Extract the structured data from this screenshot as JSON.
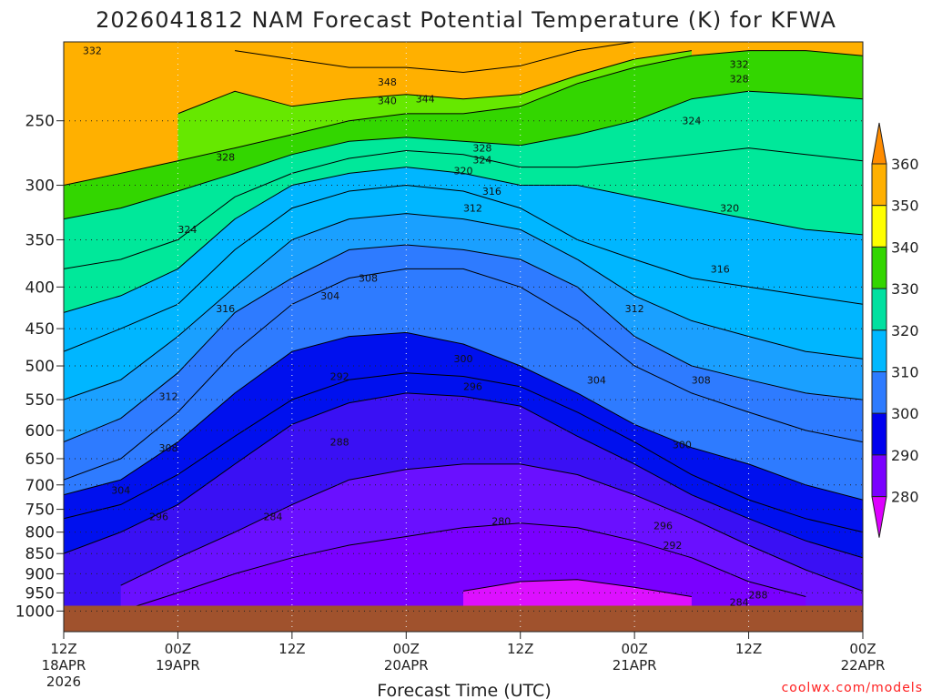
{
  "chart_data": {
    "type": "heatmap",
    "title": "2026041812 NAM Forecast Potential Temperature (K) for KFWA",
    "xlabel": "Forecast Time (UTC)",
    "ylabel": "",
    "y_scale": "log-pressure (inverted)",
    "ylim": [
      1000,
      200
    ],
    "y_ticks": [
      "250",
      "300",
      "350",
      "400",
      "450",
      "500",
      "550",
      "600",
      "650",
      "700",
      "750",
      "800",
      "850",
      "900",
      "950",
      "1000"
    ],
    "x_ticks": [
      {
        "label": "12Z",
        "date": "18APR",
        "extra": "2026"
      },
      {
        "label": "00Z",
        "date": "19APR",
        "extra": ""
      },
      {
        "label": "12Z",
        "date": "",
        "extra": ""
      },
      {
        "label": "00Z",
        "date": "20APR",
        "extra": ""
      },
      {
        "label": "12Z",
        "date": "",
        "extra": ""
      },
      {
        "label": "00Z",
        "date": "21APR",
        "extra": ""
      },
      {
        "label": "12Z",
        "date": "",
        "extra": ""
      },
      {
        "label": "00Z",
        "date": "22APR",
        "extra": ""
      }
    ],
    "colorbar": {
      "labels": [
        "360",
        "350",
        "340",
        "330",
        "320",
        "310",
        "300",
        "290",
        "280"
      ],
      "colors": [
        "#ff8c00",
        "#ffb000",
        "#ffff00",
        "#33d600",
        "#00e0a0",
        "#00b8ff",
        "#2e7bff",
        "#0000ee",
        "#7a00ff",
        "#dd00ff"
      ]
    },
    "bands": [
      {
        "min": 340,
        "max": 360,
        "color": "#ffb000"
      },
      {
        "min": 330,
        "max": 340,
        "color": "#66e800"
      },
      {
        "min": 320,
        "max": 330,
        "color": "#00e89a"
      },
      {
        "min": 310,
        "max": 320,
        "color": "#00b6ff"
      },
      {
        "min": 300,
        "max": 310,
        "color": "#2e7bff"
      },
      {
        "min": 290,
        "max": 300,
        "color": "#0010ee"
      },
      {
        "min": 280,
        "max": 290,
        "color": "#6a10ff"
      },
      {
        "min": 270,
        "max": 280,
        "color": "#dd10ff"
      }
    ],
    "series": [
      {
        "values": [
          {
            "level": 280,
            "hours": [
              42,
              48,
              54,
              60,
              66
            ],
            "pressure": [
              945,
              920,
              915,
              935,
              960
            ]
          },
          {
            "level": 284,
            "hours": [
              6,
              12,
              18,
              24,
              30,
              36,
              42,
              48,
              54,
              60,
              66,
              72,
              78
            ],
            "pressure": [
              1000,
              950,
              900,
              860,
              830,
              810,
              790,
              780,
              790,
              820,
              860,
              920,
              960
            ]
          },
          {
            "level": 288,
            "hours": [
              6,
              12,
              18,
              24,
              30,
              36,
              42,
              48,
              54,
              60,
              66,
              72,
              78,
              84
            ],
            "pressure": [
              930,
              860,
              800,
              740,
              690,
              670,
              660,
              660,
              680,
              720,
              770,
              830,
              890,
              945
            ]
          },
          {
            "level": 292,
            "hours": [
              0,
              6,
              12,
              18,
              24,
              30,
              36,
              42,
              48,
              54,
              60,
              66,
              72,
              78,
              84
            ],
            "pressure": [
              850,
              800,
              740,
              660,
              590,
              555,
              540,
              545,
              560,
              610,
              660,
              720,
              770,
              820,
              860
            ]
          },
          {
            "level": 296,
            "hours": [
              0,
              6,
              12,
              18,
              24,
              30,
              36,
              42,
              48,
              54,
              60,
              66,
              72,
              78,
              84
            ],
            "pressure": [
              770,
              740,
              680,
              610,
              550,
              520,
              510,
              515,
              530,
              570,
              620,
              680,
              730,
              770,
              800
            ]
          },
          {
            "level": 300,
            "hours": [
              0,
              6,
              12,
              18,
              24,
              30,
              36,
              42,
              48,
              54,
              60,
              66,
              72,
              78,
              84
            ],
            "pressure": [
              720,
              690,
              620,
              540,
              480,
              460,
              455,
              470,
              500,
              540,
              590,
              630,
              660,
              700,
              730
            ]
          },
          {
            "level": 304,
            "hours": [
              0,
              6,
              12,
              18,
              24,
              30,
              36,
              42,
              48,
              54,
              60,
              66,
              72,
              78,
              84
            ],
            "pressure": [
              690,
              650,
              570,
              480,
              420,
              390,
              380,
              380,
              400,
              440,
              500,
              540,
              570,
              600,
              620
            ]
          },
          {
            "level": 308,
            "hours": [
              0,
              6,
              12,
              18,
              24,
              30,
              36,
              42,
              48,
              54,
              60,
              66,
              72,
              78,
              84
            ],
            "pressure": [
              620,
              580,
              510,
              430,
              390,
              360,
              355,
              360,
              370,
              400,
              460,
              500,
              520,
              540,
              550
            ]
          },
          {
            "level": 312,
            "hours": [
              0,
              6,
              12,
              18,
              24,
              30,
              36,
              42,
              48,
              54,
              60,
              66,
              72,
              78,
              84
            ],
            "pressure": [
              550,
              520,
              460,
              400,
              350,
              330,
              325,
              330,
              340,
              370,
              410,
              440,
              460,
              480,
              490
            ]
          },
          {
            "level": 316,
            "hours": [
              0,
              6,
              12,
              18,
              24,
              30,
              36,
              42,
              48,
              54,
              60,
              66,
              72,
              78,
              84
            ],
            "pressure": [
              480,
              450,
              420,
              360,
              320,
              305,
              300,
              305,
              320,
              350,
              370,
              390,
              400,
              410,
              420
            ]
          },
          {
            "level": 320,
            "hours": [
              0,
              6,
              12,
              18,
              24,
              30,
              36,
              42,
              48,
              54,
              60,
              66,
              72,
              78,
              84
            ],
            "pressure": [
              430,
              410,
              380,
              330,
              300,
              290,
              285,
              290,
              300,
              300,
              310,
              320,
              330,
              340,
              345
            ]
          },
          {
            "level": 324,
            "hours": [
              0,
              6,
              12,
              18,
              24,
              30,
              36,
              42,
              48,
              54,
              60,
              66,
              72,
              78,
              84
            ],
            "pressure": [
              380,
              370,
              350,
              310,
              290,
              278,
              272,
              275,
              285,
              285,
              280,
              275,
              270,
              275,
              280
            ]
          },
          {
            "level": 328,
            "hours": [
              0,
              6,
              12,
              18,
              24,
              30,
              36,
              42,
              48,
              54,
              60,
              66,
              72,
              78,
              84
            ],
            "pressure": [
              330,
              320,
              305,
              290,
              275,
              265,
              262,
              265,
              268,
              260,
              250,
              235,
              230,
              232,
              235
            ]
          },
          {
            "level": 332,
            "hours": [
              0,
              6,
              12,
              18,
              24,
              30,
              36,
              42,
              48,
              54,
              60,
              66,
              72,
              78,
              84
            ],
            "pressure": [
              300,
              290,
              280,
              270,
              260,
              250,
              245,
              245,
              240,
              225,
              215,
              208,
              205,
              205,
              208
            ]
          },
          {
            "level": 340,
            "hours": [
              12,
              18,
              24,
              30,
              36,
              42,
              48,
              54,
              60,
              66
            ],
            "pressure": [
              245,
              230,
              240,
              235,
              232,
              235,
              232,
              220,
              210,
              205
            ]
          },
          {
            "level": 348,
            "hours": [
              18,
              24,
              30,
              36,
              42,
              48,
              54,
              60
            ],
            "pressure": [
              205,
              210,
              215,
              215,
              218,
              214,
              205,
              200
            ]
          }
        ]
      }
    ],
    "contour_labels": [
      {
        "text": "332",
        "hour": 3,
        "pressure": 205
      },
      {
        "text": "348",
        "hour": 34,
        "pressure": 224
      },
      {
        "text": "340",
        "hour": 34,
        "pressure": 236
      },
      {
        "text": "344",
        "hour": 38,
        "pressure": 235
      },
      {
        "text": "328",
        "hour": 17,
        "pressure": 277
      },
      {
        "text": "328",
        "hour": 44,
        "pressure": 270
      },
      {
        "text": "324",
        "hour": 44,
        "pressure": 279
      },
      {
        "text": "320",
        "hour": 42,
        "pressure": 288
      },
      {
        "text": "316",
        "hour": 45,
        "pressure": 305
      },
      {
        "text": "312",
        "hour": 43,
        "pressure": 320
      },
      {
        "text": "332",
        "hour": 71,
        "pressure": 213
      },
      {
        "text": "328",
        "hour": 71,
        "pressure": 222
      },
      {
        "text": "324",
        "hour": 66,
        "pressure": 250
      },
      {
        "text": "320",
        "hour": 70,
        "pressure": 320
      },
      {
        "text": "324",
        "hour": 13,
        "pressure": 340
      },
      {
        "text": "316",
        "hour": 69,
        "pressure": 380
      },
      {
        "text": "308",
        "hour": 32,
        "pressure": 390
      },
      {
        "text": "304",
        "hour": 28,
        "pressure": 410
      },
      {
        "text": "316",
        "hour": 17,
        "pressure": 425
      },
      {
        "text": "312",
        "hour": 60,
        "pressure": 425
      },
      {
        "text": "300",
        "hour": 42,
        "pressure": 490
      },
      {
        "text": "312",
        "hour": 11,
        "pressure": 545
      },
      {
        "text": "308",
        "hour": 67,
        "pressure": 520
      },
      {
        "text": "304",
        "hour": 56,
        "pressure": 520
      },
      {
        "text": "292",
        "hour": 29,
        "pressure": 515
      },
      {
        "text": "296",
        "hour": 43,
        "pressure": 530
      },
      {
        "text": "308",
        "hour": 11,
        "pressure": 630
      },
      {
        "text": "300",
        "hour": 65,
        "pressure": 625
      },
      {
        "text": "288",
        "hour": 29,
        "pressure": 620
      },
      {
        "text": "304",
        "hour": 6,
        "pressure": 710
      },
      {
        "text": "296",
        "hour": 10,
        "pressure": 765
      },
      {
        "text": "284",
        "hour": 22,
        "pressure": 765
      },
      {
        "text": "280",
        "hour": 46,
        "pressure": 775
      },
      {
        "text": "296",
        "hour": 63,
        "pressure": 785
      },
      {
        "text": "292",
        "hour": 64,
        "pressure": 830
      },
      {
        "text": "288",
        "hour": 73,
        "pressure": 955
      },
      {
        "text": "284",
        "hour": 71,
        "pressure": 975
      }
    ]
  },
  "credit": "coolwx.com/models"
}
